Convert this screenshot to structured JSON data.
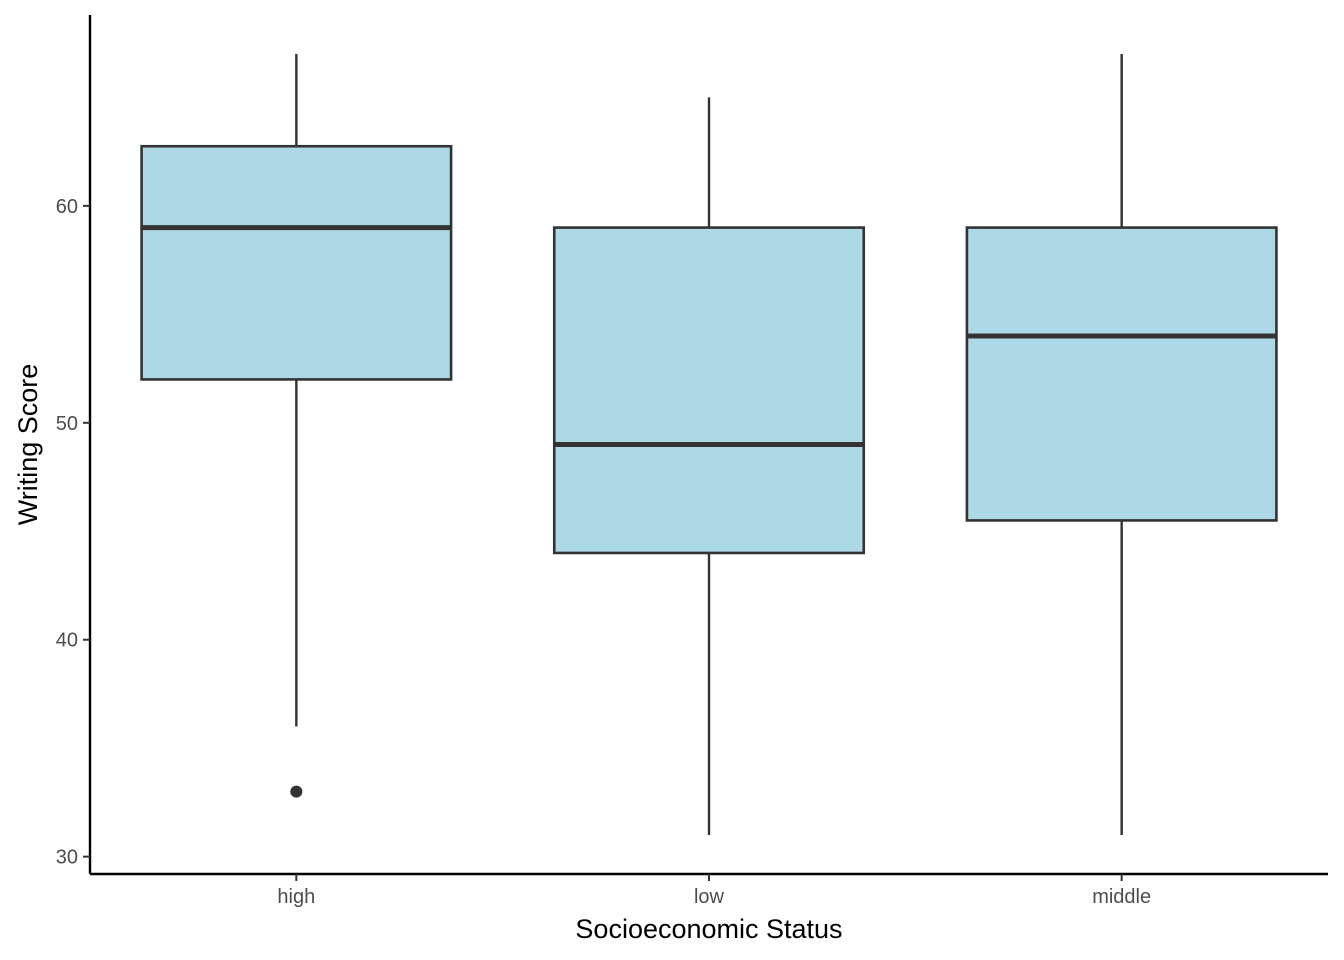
{
  "chart_data": {
    "type": "box",
    "title": "",
    "xlabel": "Socioeconomic Status",
    "ylabel": "Writing Score",
    "categories": [
      "high",
      "low",
      "middle"
    ],
    "boxes": [
      {
        "category": "high",
        "whisker_low": 36,
        "q1": 52,
        "median": 59,
        "q3": 62.75,
        "whisker_high": 67,
        "outliers": [
          33
        ]
      },
      {
        "category": "low",
        "whisker_low": 31,
        "q1": 44,
        "median": 49,
        "q3": 59,
        "whisker_high": 65,
        "outliers": []
      },
      {
        "category": "middle",
        "whisker_low": 31,
        "q1": 45.5,
        "median": 54,
        "q3": 59,
        "whisker_high": 67,
        "outliers": []
      }
    ],
    "yticks": [
      30,
      40,
      50,
      60
    ],
    "ylim": [
      29.2,
      68.8
    ],
    "grid": false,
    "legend": "none",
    "colors": {
      "box_fill": "#add8e6",
      "box_stroke": "#333333",
      "axis_line": "#000000",
      "tick_text": "#4d4d4d"
    }
  }
}
